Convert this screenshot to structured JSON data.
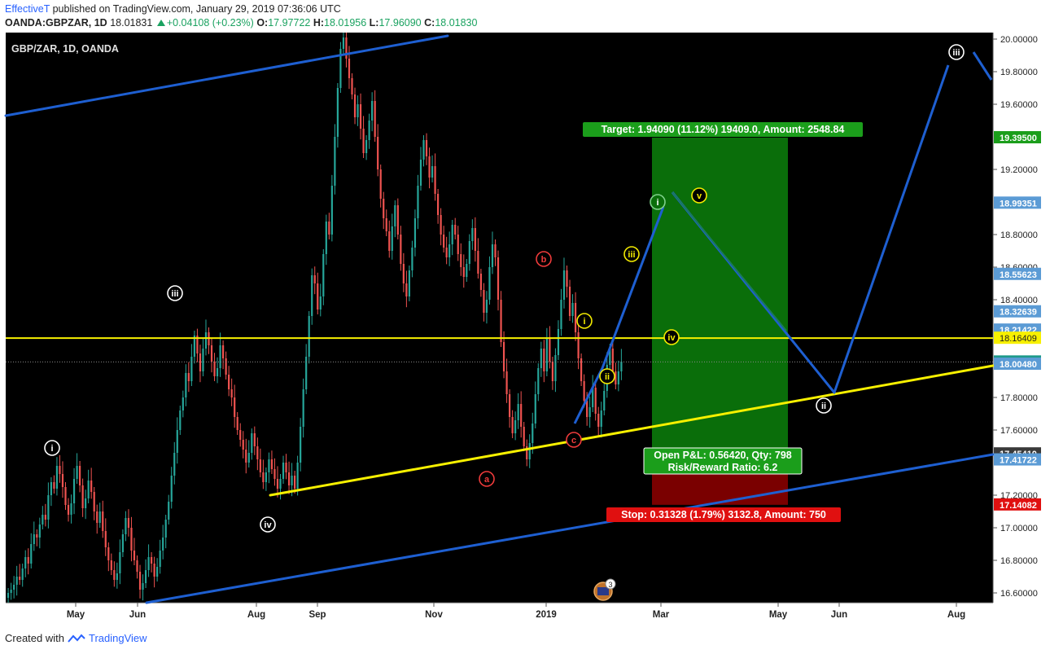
{
  "header": {
    "author": "EffectiveT",
    "published": "published on TradingView.com, January 29, 2019 07:36:06 UTC",
    "symbol": "OANDA:GBPZAR, 1D",
    "last": "18.01831",
    "change": "+0.04108 (+0.23%)",
    "open_label": "O:",
    "open": "17.97722",
    "high_label": "H:",
    "high": "18.01956",
    "low_label": "L:",
    "low": "17.96090",
    "close_label": "C:",
    "close": "18.01830"
  },
  "footer": {
    "created_with": "Created with",
    "brand": "TradingView"
  },
  "colors": {
    "background": "#000000",
    "up": "#26a69a",
    "down": "#ef5350",
    "channel": "#1e5fd1",
    "support": "#f7f000",
    "target_zone": "#0a6e0a",
    "stop_zone": "#7a0000",
    "price_tag": "#5b9bd5",
    "last_price": "#d9dcd9"
  },
  "chart_data": {
    "type": "candlestick",
    "title": "GBP/ZAR, 1D, OANDA",
    "x_ticks": [
      "May",
      "Jun",
      "Aug",
      "Sep",
      "Nov",
      "2019",
      "Mar",
      "May",
      "Jun",
      "Aug"
    ],
    "y_ticks": [
      "20.00000",
      "19.80000",
      "19.60000",
      "19.20000",
      "18.80000",
      "18.60000",
      "18.40000",
      "17.80000",
      "17.60000",
      "17.20000",
      "17.00000",
      "16.80000",
      "16.60000"
    ],
    "ylim": [
      16.54,
      20.04
    ],
    "price_tags": [
      {
        "value": 19.395,
        "label": "19.39500",
        "kind": "target"
      },
      {
        "value": 18.99351,
        "label": "18.99351",
        "kind": "level"
      },
      {
        "value": 18.55623,
        "label": "18.55623",
        "kind": "level"
      },
      {
        "value": 18.32639,
        "label": "18.32639",
        "kind": "level"
      },
      {
        "value": 18.21422,
        "label": "18.21422",
        "kind": "level"
      },
      {
        "value": 18.16409,
        "label": "18.16409",
        "kind": "support"
      },
      {
        "value": 18.0183,
        "label": "18.01830",
        "kind": "last"
      },
      {
        "value": 18.0048,
        "label": "18.00480",
        "kind": "level"
      },
      {
        "value": 17.4541,
        "label": "17.45410",
        "kind": "entry"
      },
      {
        "value": 17.41722,
        "label": "17.41722",
        "kind": "level"
      },
      {
        "value": 17.14082,
        "label": "17.14082",
        "kind": "stop"
      }
    ],
    "horizontal_line": 18.16409,
    "position": {
      "target_label": "Target: 1.94090 (11.12%) 19409.0, Amount: 2548.84",
      "pnl_label": "Open P&L: 0.56420, Qty: 798",
      "rr_label": "Risk/Reward Ratio: 6.2",
      "stop_label": "Stop: 0.31328 (1.79%) 3132.8, Amount: 750",
      "target": 19.395,
      "entry": 17.4541,
      "stop": 17.14082
    },
    "wave_labels": [
      {
        "text": "i",
        "price": 17.49,
        "style": "white"
      },
      {
        "text": "iii",
        "price": 18.44,
        "style": "white"
      },
      {
        "text": "iv",
        "price": 17.02,
        "style": "white"
      },
      {
        "text": "a",
        "price": 17.3,
        "style": "red"
      },
      {
        "text": "b",
        "price": 18.65,
        "style": "red"
      },
      {
        "text": "c",
        "price": 17.54,
        "style": "red"
      },
      {
        "text": "i",
        "price": 18.27,
        "style": "yellow"
      },
      {
        "text": "ii",
        "price": 17.93,
        "style": "yellow"
      },
      {
        "text": "iii",
        "price": 18.68,
        "style": "yellow"
      },
      {
        "text": "iv",
        "price": 18.17,
        "style": "yellow"
      },
      {
        "text": "v",
        "price": 19.04,
        "style": "yellow"
      },
      {
        "text": "i",
        "price": 19.0,
        "style": "green"
      },
      {
        "text": "ii",
        "price": 17.75,
        "style": "white"
      },
      {
        "text": "iii",
        "price": 19.92,
        "style": "white"
      }
    ],
    "events_badge": "3",
    "candles": [
      [
        16.57,
        16.6
      ],
      [
        16.6,
        16.62
      ],
      [
        16.62,
        16.65
      ],
      [
        16.65,
        16.7
      ],
      [
        16.7,
        16.68
      ],
      [
        16.68,
        16.75
      ],
      [
        16.75,
        16.82
      ],
      [
        16.82,
        16.78
      ],
      [
        16.78,
        16.9
      ],
      [
        16.9,
        16.96
      ],
      [
        16.96,
        16.94
      ],
      [
        16.94,
        17.02
      ],
      [
        17.02,
        17.08
      ],
      [
        17.08,
        17.05
      ],
      [
        17.05,
        17.2
      ],
      [
        17.2,
        17.28
      ],
      [
        17.28,
        17.24
      ],
      [
        17.24,
        17.38
      ],
      [
        17.38,
        17.33
      ],
      [
        17.33,
        17.25
      ],
      [
        17.25,
        17.14
      ],
      [
        17.14,
        17.08
      ],
      [
        17.08,
        17.15
      ],
      [
        17.15,
        17.3
      ],
      [
        17.3,
        17.38
      ],
      [
        17.38,
        17.26
      ],
      [
        17.26,
        17.12
      ],
      [
        17.12,
        17.18
      ],
      [
        17.18,
        17.29
      ],
      [
        17.29,
        17.22
      ],
      [
        17.22,
        17.1
      ],
      [
        17.1,
        17.03
      ],
      [
        17.03,
        17.1
      ],
      [
        17.1,
        16.98
      ],
      [
        16.98,
        16.88
      ],
      [
        16.88,
        16.8
      ],
      [
        16.8,
        16.74
      ],
      [
        16.74,
        16.68
      ],
      [
        16.68,
        16.72
      ],
      [
        16.72,
        16.85
      ],
      [
        16.85,
        16.96
      ],
      [
        16.96,
        17.06
      ],
      [
        17.06,
        17.0
      ],
      [
        17.0,
        16.86
      ],
      [
        16.86,
        16.8
      ],
      [
        16.8,
        16.73
      ],
      [
        16.73,
        16.62
      ],
      [
        16.62,
        16.66
      ],
      [
        16.66,
        16.74
      ],
      [
        16.74,
        16.82
      ],
      [
        16.82,
        16.78
      ],
      [
        16.78,
        16.7
      ],
      [
        16.7,
        16.76
      ],
      [
        16.76,
        16.86
      ],
      [
        16.86,
        16.94
      ],
      [
        16.94,
        17.05
      ],
      [
        17.05,
        17.16
      ],
      [
        17.16,
        17.32
      ],
      [
        17.32,
        17.46
      ],
      [
        17.46,
        17.6
      ],
      [
        17.6,
        17.72
      ],
      [
        17.72,
        17.8
      ],
      [
        17.8,
        17.95
      ],
      [
        17.95,
        17.9
      ],
      [
        17.9,
        18.05
      ],
      [
        18.05,
        18.18
      ],
      [
        18.18,
        18.07
      ],
      [
        18.07,
        17.96
      ],
      [
        17.96,
        18.1
      ],
      [
        18.1,
        18.2
      ],
      [
        18.2,
        18.12
      ],
      [
        18.12,
        18.02
      ],
      [
        18.02,
        17.93
      ],
      [
        17.93,
        17.98
      ],
      [
        17.98,
        18.12
      ],
      [
        18.12,
        18.04
      ],
      [
        18.04,
        17.94
      ],
      [
        17.94,
        17.85
      ],
      [
        17.85,
        17.8
      ],
      [
        17.8,
        17.68
      ],
      [
        17.68,
        17.6
      ],
      [
        17.6,
        17.54
      ],
      [
        17.54,
        17.48
      ],
      [
        17.48,
        17.4
      ],
      [
        17.4,
        17.46
      ],
      [
        17.46,
        17.58
      ],
      [
        17.58,
        17.5
      ],
      [
        17.5,
        17.42
      ],
      [
        17.42,
        17.34
      ],
      [
        17.34,
        17.28
      ],
      [
        17.28,
        17.34
      ],
      [
        17.34,
        17.42
      ],
      [
        17.42,
        17.36
      ],
      [
        17.36,
        17.3
      ],
      [
        17.3,
        17.24
      ],
      [
        17.24,
        17.3
      ],
      [
        17.3,
        17.4
      ],
      [
        17.4,
        17.34
      ],
      [
        17.34,
        17.26
      ],
      [
        17.26,
        17.32
      ],
      [
        17.32,
        17.24
      ],
      [
        17.24,
        17.4
      ],
      [
        17.4,
        17.62
      ],
      [
        17.62,
        17.85
      ],
      [
        17.85,
        18.05
      ],
      [
        18.05,
        18.3
      ],
      [
        18.3,
        18.55
      ],
      [
        18.55,
        18.5
      ],
      [
        18.5,
        18.34
      ],
      [
        18.34,
        18.42
      ],
      [
        18.42,
        18.68
      ],
      [
        18.68,
        18.88
      ],
      [
        18.88,
        18.8
      ],
      [
        18.8,
        19.1
      ],
      [
        19.1,
        19.4
      ],
      [
        19.4,
        19.7
      ],
      [
        19.7,
        19.94
      ],
      [
        19.94,
        20.01
      ],
      [
        20.01,
        19.88
      ],
      [
        19.88,
        19.76
      ],
      [
        19.76,
        19.66
      ],
      [
        19.66,
        19.52
      ],
      [
        19.52,
        19.6
      ],
      [
        19.6,
        19.45
      ],
      [
        19.45,
        19.3
      ],
      [
        19.3,
        19.38
      ],
      [
        19.38,
        19.5
      ],
      [
        19.5,
        19.62
      ],
      [
        19.62,
        19.4
      ],
      [
        19.4,
        19.2
      ],
      [
        19.2,
        19.02
      ],
      [
        19.02,
        18.9
      ],
      [
        18.9,
        18.82
      ],
      [
        18.82,
        18.7
      ],
      [
        18.7,
        18.85
      ],
      [
        18.85,
        18.98
      ],
      [
        18.98,
        18.8
      ],
      [
        18.8,
        18.62
      ],
      [
        18.62,
        18.5
      ],
      [
        18.5,
        18.42
      ],
      [
        18.42,
        18.58
      ],
      [
        18.58,
        18.72
      ],
      [
        18.72,
        18.9
      ],
      [
        18.9,
        19.1
      ],
      [
        19.1,
        19.26
      ],
      [
        19.26,
        19.38
      ],
      [
        19.38,
        19.28
      ],
      [
        19.28,
        19.15
      ],
      [
        19.15,
        19.22
      ],
      [
        19.22,
        19.05
      ],
      [
        19.05,
        18.92
      ],
      [
        18.92,
        18.8
      ],
      [
        18.8,
        18.72
      ],
      [
        18.72,
        18.66
      ],
      [
        18.66,
        18.74
      ],
      [
        18.74,
        18.86
      ],
      [
        18.86,
        18.8
      ],
      [
        18.8,
        18.68
      ],
      [
        18.68,
        18.6
      ],
      [
        18.6,
        18.54
      ],
      [
        18.54,
        18.62
      ],
      [
        18.62,
        18.76
      ],
      [
        18.76,
        18.84
      ],
      [
        18.84,
        18.7
      ],
      [
        18.7,
        18.56
      ],
      [
        18.56,
        18.46
      ],
      [
        18.46,
        18.32
      ],
      [
        18.32,
        18.4
      ],
      [
        18.4,
        18.6
      ],
      [
        18.6,
        18.74
      ],
      [
        18.74,
        18.66
      ],
      [
        18.66,
        18.4
      ],
      [
        18.4,
        18.14
      ],
      [
        18.14,
        17.96
      ],
      [
        17.96,
        17.82
      ],
      [
        17.82,
        17.68
      ],
      [
        17.68,
        17.58
      ],
      [
        17.58,
        17.66
      ],
      [
        17.66,
        17.76
      ],
      [
        17.76,
        17.62
      ],
      [
        17.62,
        17.5
      ],
      [
        17.5,
        17.42
      ],
      [
        17.42,
        17.52
      ],
      [
        17.52,
        17.64
      ],
      [
        17.64,
        17.82
      ],
      [
        17.82,
        17.98
      ],
      [
        17.98,
        18.1
      ],
      [
        18.1,
        17.96
      ],
      [
        17.96,
        18.16
      ],
      [
        18.16,
        18.02
      ],
      [
        18.02,
        17.9
      ],
      [
        17.9,
        18.06
      ],
      [
        18.06,
        18.22
      ],
      [
        18.22,
        18.4
      ],
      [
        18.4,
        18.58
      ],
      [
        18.58,
        18.48
      ],
      [
        18.48,
        18.3
      ],
      [
        18.3,
        18.38
      ],
      [
        18.38,
        18.2
      ],
      [
        18.2,
        18.04
      ],
      [
        18.04,
        17.9
      ],
      [
        17.9,
        17.78
      ],
      [
        17.78,
        17.68
      ],
      [
        17.68,
        17.74
      ],
      [
        17.74,
        17.86
      ],
      [
        17.86,
        17.7
      ],
      [
        17.7,
        17.62
      ],
      [
        17.62,
        17.72
      ],
      [
        17.72,
        17.84
      ],
      [
        17.84,
        18.0
      ],
      [
        18.0,
        18.1
      ],
      [
        18.1,
        17.96
      ],
      [
        17.96,
        17.88
      ],
      [
        17.88,
        17.96
      ],
      [
        17.96,
        18.02
      ]
    ]
  }
}
